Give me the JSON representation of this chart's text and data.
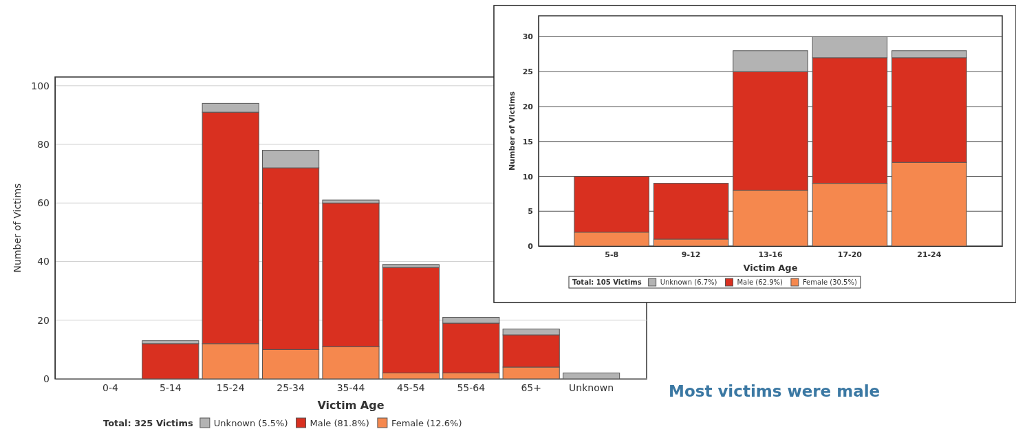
{
  "chart_data": [
    {
      "type": "bar",
      "stacked": true,
      "categories": [
        "0-4",
        "5-14",
        "15-24",
        "25-34",
        "35-44",
        "45-54",
        "55-64",
        "65+",
        "Unknown"
      ],
      "series": [
        {
          "name": "Female (12.6%)",
          "color": "#f5884e",
          "values": [
            0,
            0,
            12,
            10,
            11,
            2,
            2,
            4,
            0
          ]
        },
        {
          "name": "Male (81.8%)",
          "color": "#d93020",
          "values": [
            0,
            12,
            79,
            62,
            49,
            36,
            17,
            11,
            0
          ]
        },
        {
          "name": "Unknown (5.5%)",
          "color": "#b3b3b3",
          "values": [
            0,
            1,
            3,
            6,
            1,
            1,
            2,
            2,
            2
          ]
        }
      ],
      "xlabel": "Victim Age",
      "ylabel": "Number of Victims",
      "legend_title": "Total: 325 Victims",
      "ylim": [
        0,
        103
      ],
      "yticks": [
        0,
        20,
        40,
        60,
        80,
        100
      ],
      "grid": "y",
      "legend": "bottom"
    },
    {
      "type": "bar",
      "stacked": true,
      "categories": [
        "5-8",
        "9-12",
        "13-16",
        "17-20",
        "21-24"
      ],
      "series": [
        {
          "name": "Female (30.5%)",
          "color": "#f5884e",
          "values": [
            2,
            1,
            8,
            9,
            12
          ]
        },
        {
          "name": "Male (62.9%)",
          "color": "#d93020",
          "values": [
            8,
            8,
            17,
            18,
            15
          ]
        },
        {
          "name": "Unknown (6.7%)",
          "color": "#b3b3b3",
          "values": [
            0,
            0,
            3,
            3,
            1
          ]
        }
      ],
      "xlabel": "Victim Age",
      "ylabel": "Number of Victims",
      "legend_title": "Total: 105 Victims",
      "ylim": [
        0,
        33
      ],
      "yticks": [
        0,
        5,
        10,
        15,
        20,
        25,
        30
      ],
      "grid": "y",
      "legend": "bottom",
      "annotations": [
        "Most victims were male"
      ]
    }
  ]
}
